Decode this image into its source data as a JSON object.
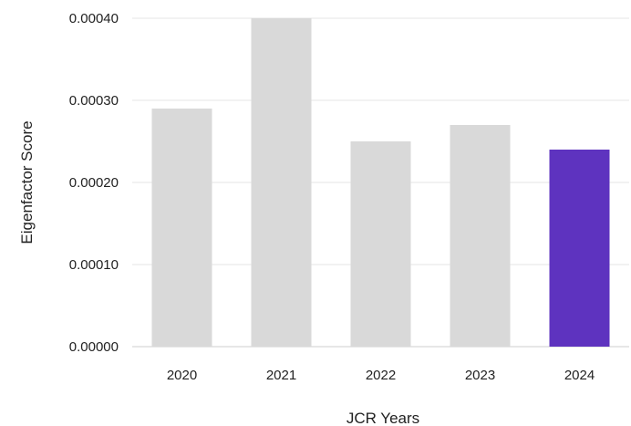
{
  "chart_data": {
    "type": "bar",
    "categories": [
      "2020",
      "2021",
      "2022",
      "2023",
      "2024"
    ],
    "values": [
      0.00029,
      0.0004,
      0.00025,
      0.00027,
      0.00024
    ],
    "bar_colors": [
      "#d9d9d9",
      "#d9d9d9",
      "#d9d9d9",
      "#d9d9d9",
      "#5e33bf"
    ],
    "highlight_category": "2024",
    "xlabel": "JCR Years",
    "ylabel": "Eigenfactor Score",
    "ylim": [
      0,
      0.0004
    ],
    "yticks": [
      "0.00000",
      "0.00010",
      "0.00020",
      "0.00030",
      "0.00040"
    ],
    "ytick_values": [
      0,
      0.0001,
      0.0002,
      0.0003,
      0.0004
    ],
    "grid": true,
    "legend": "none"
  }
}
